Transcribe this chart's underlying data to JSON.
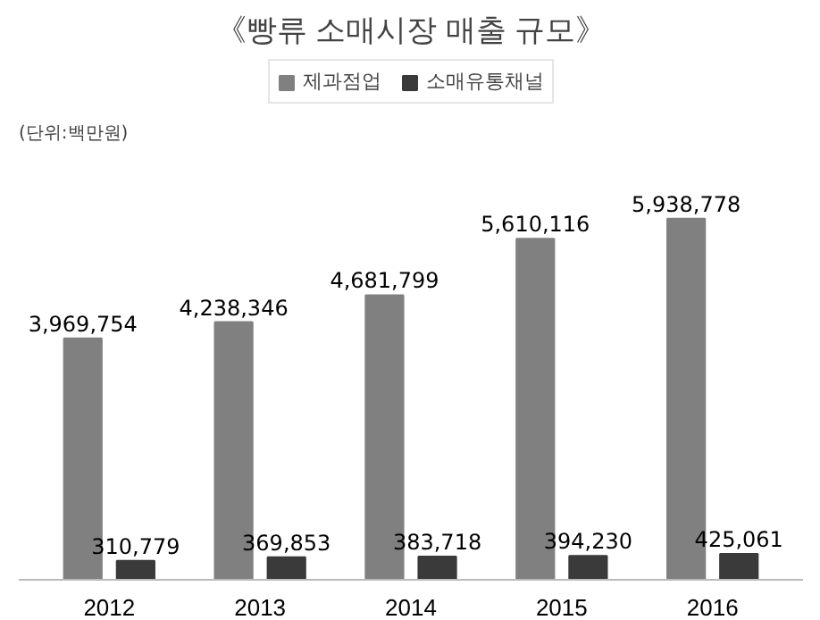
{
  "chart_data": {
    "type": "bar",
    "title": "《빵류 소매시장 매출 규모》",
    "annotations": [
      "(단위:백만원)"
    ],
    "categories": [
      "2012",
      "2013",
      "2014",
      "2015",
      "2016"
    ],
    "series": [
      {
        "name": "제과점업",
        "color": "#808080",
        "values": [
          3969754,
          4238346,
          4681799,
          5610116,
          5938778
        ],
        "value_labels": [
          "3,969,754",
          "4,238,346",
          "4,681,799",
          "5,610,116",
          "5,938,778"
        ]
      },
      {
        "name": "소매유통채널",
        "color": "#3a3a3a",
        "values": [
          310779,
          369853,
          383718,
          394230,
          425061
        ],
        "value_labels": [
          "310,779",
          "369,853",
          "383,718",
          "394,230",
          "425,061"
        ]
      }
    ],
    "legend": "top",
    "grid": false
  }
}
